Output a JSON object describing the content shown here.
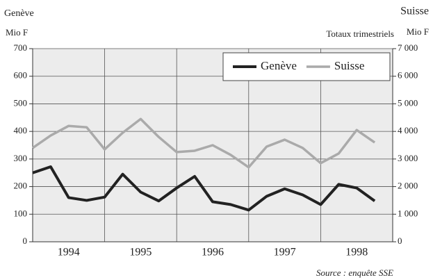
{
  "chart_data": {
    "type": "line",
    "left_title": "Genève",
    "left_unit": "Mio F",
    "right_title": "Suisse",
    "right_unit": "Mio F",
    "subtitle": "Totaux trimestriels",
    "source": "Source : enquête SSE",
    "x": [
      1994,
      1994.25,
      1994.5,
      1994.75,
      1995,
      1995.25,
      1995.5,
      1995.75,
      1996,
      1996.25,
      1996.5,
      1996.75,
      1997,
      1997.25,
      1997.5,
      1997.75,
      1998,
      1998.25,
      1998.5,
      1998.75
    ],
    "xlim": [
      1994,
      1999
    ],
    "xticks": [
      {
        "value": 1994.5,
        "label": "1994"
      },
      {
        "value": 1995.5,
        "label": "1995"
      },
      {
        "value": 1996.5,
        "label": "1996"
      },
      {
        "value": 1997.5,
        "label": "1997"
      },
      {
        "value": 1998.5,
        "label": "1998"
      }
    ],
    "xgrid": [
      1995,
      1996,
      1997,
      1998
    ],
    "ylim": [
      0,
      700
    ],
    "yticks": [
      0,
      100,
      200,
      300,
      400,
      500,
      600,
      700
    ],
    "y2lim": [
      0,
      7000
    ],
    "y2ticks": [
      0,
      {
        "value": 1000,
        "label": "1 000"
      },
      {
        "value": 2000,
        "label": "2 000"
      },
      {
        "value": 3000,
        "label": "3 000"
      },
      {
        "value": 4000,
        "label": "4 000"
      },
      {
        "value": 5000,
        "label": "5 000"
      },
      {
        "value": 6000,
        "label": "6 000"
      },
      {
        "value": 7000,
        "label": "7 000"
      }
    ],
    "grid": true,
    "legend": "upper right",
    "series": [
      {
        "name": "Genève",
        "color": "#222222",
        "values": [
          250,
          272,
          160,
          150,
          162,
          245,
          180,
          148,
          195,
          237,
          145,
          135,
          115,
          165,
          192,
          170,
          135,
          208,
          195,
          148
        ]
      },
      {
        "name": "Suisse",
        "color": "#aaaaaa",
        "axis": "y2",
        "values": [
          3400,
          3850,
          4200,
          4150,
          3350,
          3950,
          4450,
          3800,
          3250,
          3300,
          3500,
          3150,
          2700,
          3450,
          3700,
          3400,
          2850,
          3200,
          4050,
          3600
        ]
      }
    ]
  }
}
